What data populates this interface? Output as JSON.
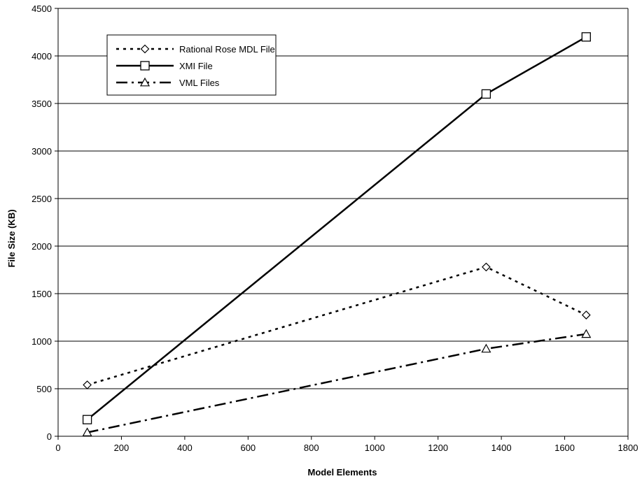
{
  "chart_data": {
    "type": "line",
    "title": "",
    "xlabel": "Model Elements",
    "ylabel": "File Size (KB)",
    "xlim": [
      0,
      1800
    ],
    "ylim": [
      0,
      4500
    ],
    "xticks": [
      0,
      200,
      400,
      600,
      800,
      1000,
      1200,
      1400,
      1600,
      1800
    ],
    "yticks": [
      0,
      500,
      1000,
      1500,
      2000,
      2500,
      3000,
      3500,
      4000,
      4500
    ],
    "grid": "horizontal",
    "legend_position": "top-left",
    "series": [
      {
        "name": "Rational Rose MDL File",
        "line_style": "dotted",
        "marker": "diamond",
        "color": "#000000",
        "points": [
          [
            92,
            540
          ],
          [
            1352,
            1780
          ],
          [
            1668,
            1275
          ]
        ]
      },
      {
        "name": "XMI File",
        "line_style": "solid",
        "marker": "square",
        "color": "#000000",
        "points": [
          [
            92,
            175
          ],
          [
            1352,
            3600
          ],
          [
            1668,
            4200
          ]
        ]
      },
      {
        "name": "VML Files",
        "line_style": "dash-dot",
        "marker": "triangle",
        "color": "#000000",
        "points": [
          [
            92,
            40
          ],
          [
            1352,
            920
          ],
          [
            1668,
            1075
          ]
        ]
      }
    ]
  }
}
